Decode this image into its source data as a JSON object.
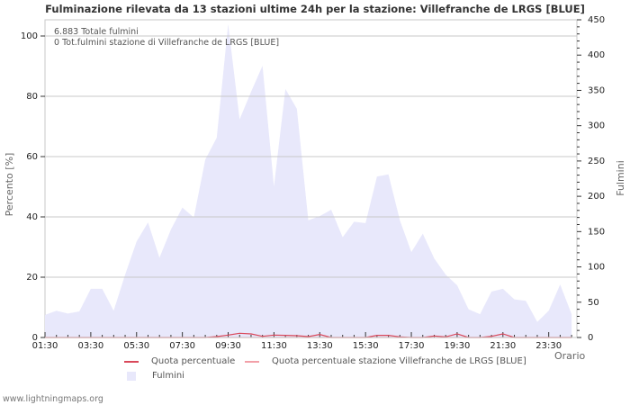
{
  "chart_data": {
    "type": "area",
    "title": "Fulminazione rilevata da 13 stazioni ultime 24h per la stazione: Villefranche de LRGS [BLUE]",
    "xlabel": "Orario",
    "ylabel_left": "Percento  [%]",
    "ylabel_right": "Fulmini",
    "ylim_left": [
      0,
      100
    ],
    "ylim_right": [
      0,
      450
    ],
    "left_ticks": [
      0,
      20,
      40,
      60,
      80,
      100
    ],
    "right_ticks": [
      0,
      50,
      100,
      150,
      200,
      250,
      300,
      350,
      400,
      450
    ],
    "x_tick_labels": [
      "01:30",
      "03:30",
      "05:30",
      "07:30",
      "09:30",
      "11:30",
      "13:30",
      "15:30",
      "17:30",
      "19:30",
      "21:30",
      "23:30"
    ],
    "grid": true,
    "legend_position": "bottom",
    "x": [
      "01:30",
      "02:00",
      "02:30",
      "03:00",
      "03:30",
      "04:00",
      "04:30",
      "05:00",
      "05:30",
      "06:00",
      "06:30",
      "07:00",
      "07:30",
      "08:00",
      "08:30",
      "09:00",
      "09:30",
      "10:00",
      "10:30",
      "11:00",
      "11:30",
      "12:00",
      "12:30",
      "13:00",
      "13:30",
      "14:00",
      "14:30",
      "15:00",
      "15:30",
      "16:00",
      "16:30",
      "17:00",
      "17:30",
      "18:00",
      "18:30",
      "19:00",
      "19:30",
      "20:00",
      "20:30",
      "21:00",
      "21:30",
      "22:00",
      "22:30",
      "23:00",
      "23:30",
      "00:00",
      "00:15"
    ],
    "series": [
      {
        "name": "Fulmini",
        "axis": "right",
        "type": "area",
        "color": "#e8e8fb",
        "values": [
          32,
          38,
          34,
          37,
          69,
          69,
          38,
          89,
          136,
          163,
          113,
          153,
          184,
          170,
          252,
          283,
          444,
          309,
          348,
          385,
          214,
          352,
          324,
          166,
          172,
          181,
          142,
          164,
          162,
          228,
          231,
          166,
          121,
          147,
          112,
          89,
          74,
          40,
          33,
          65,
          69,
          54,
          52,
          22,
          38,
          75,
          33
        ]
      },
      {
        "name": "Quota percentuale",
        "axis": "left",
        "type": "line",
        "color": "#d9485a",
        "values": [
          0,
          0,
          0,
          0,
          0,
          0,
          0,
          0,
          0,
          0,
          0,
          0,
          0,
          0,
          0,
          0.3,
          0.8,
          1.4,
          1.2,
          0.4,
          0.8,
          0.7,
          0.6,
          0.3,
          1.0,
          0,
          0,
          0,
          0,
          0.7,
          0.7,
          0.2,
          0,
          0,
          0.5,
          0.2,
          1.2,
          0,
          0,
          0.4,
          1.2,
          0,
          0,
          0,
          0,
          0,
          0
        ]
      },
      {
        "name": "Quota percentuale stazione Villefranche de LRGS [BLUE]",
        "axis": "left",
        "type": "line",
        "color": "#f2a0a8",
        "values": [
          0,
          0,
          0,
          0,
          0,
          0,
          0,
          0,
          0,
          0,
          0,
          0,
          0,
          0,
          0,
          0,
          0,
          0,
          0,
          0,
          0,
          0,
          0,
          0,
          0,
          0,
          0,
          0,
          0,
          0,
          0,
          0,
          0,
          0,
          0,
          0,
          0,
          0,
          0,
          0,
          0,
          0,
          0,
          0,
          0,
          0,
          0
        ]
      }
    ],
    "annotations": [
      "6.883 Totale fulmini",
      "0 Tot.fulmini stazione di Villefranche de LRGS [BLUE]"
    ]
  },
  "header": {
    "title": "Fulminazione rilevata da 13 stazioni ultime 24h per la stazione: Villefranche de LRGS [BLUE]"
  },
  "info": {
    "total": "6.883 Totale fulmini",
    "station_total": "0 Tot.fulmini stazione di Villefranche de LRGS [BLUE]"
  },
  "legend": {
    "quota": "Quota percentuale",
    "quota_station": "Quota percentuale stazione Villefranche de LRGS [BLUE]",
    "fulmini": "Fulmini"
  },
  "axes": {
    "left_label": "Percento  [%]",
    "right_label": "Fulmini",
    "x_label": "Orario"
  },
  "footer": {
    "source": "www.lightningmaps.org"
  },
  "colors": {
    "area": "#e8e8fb",
    "quota": "#d9485a",
    "quota_station": "#f2a0a8",
    "grid": "#c8c8c8"
  }
}
